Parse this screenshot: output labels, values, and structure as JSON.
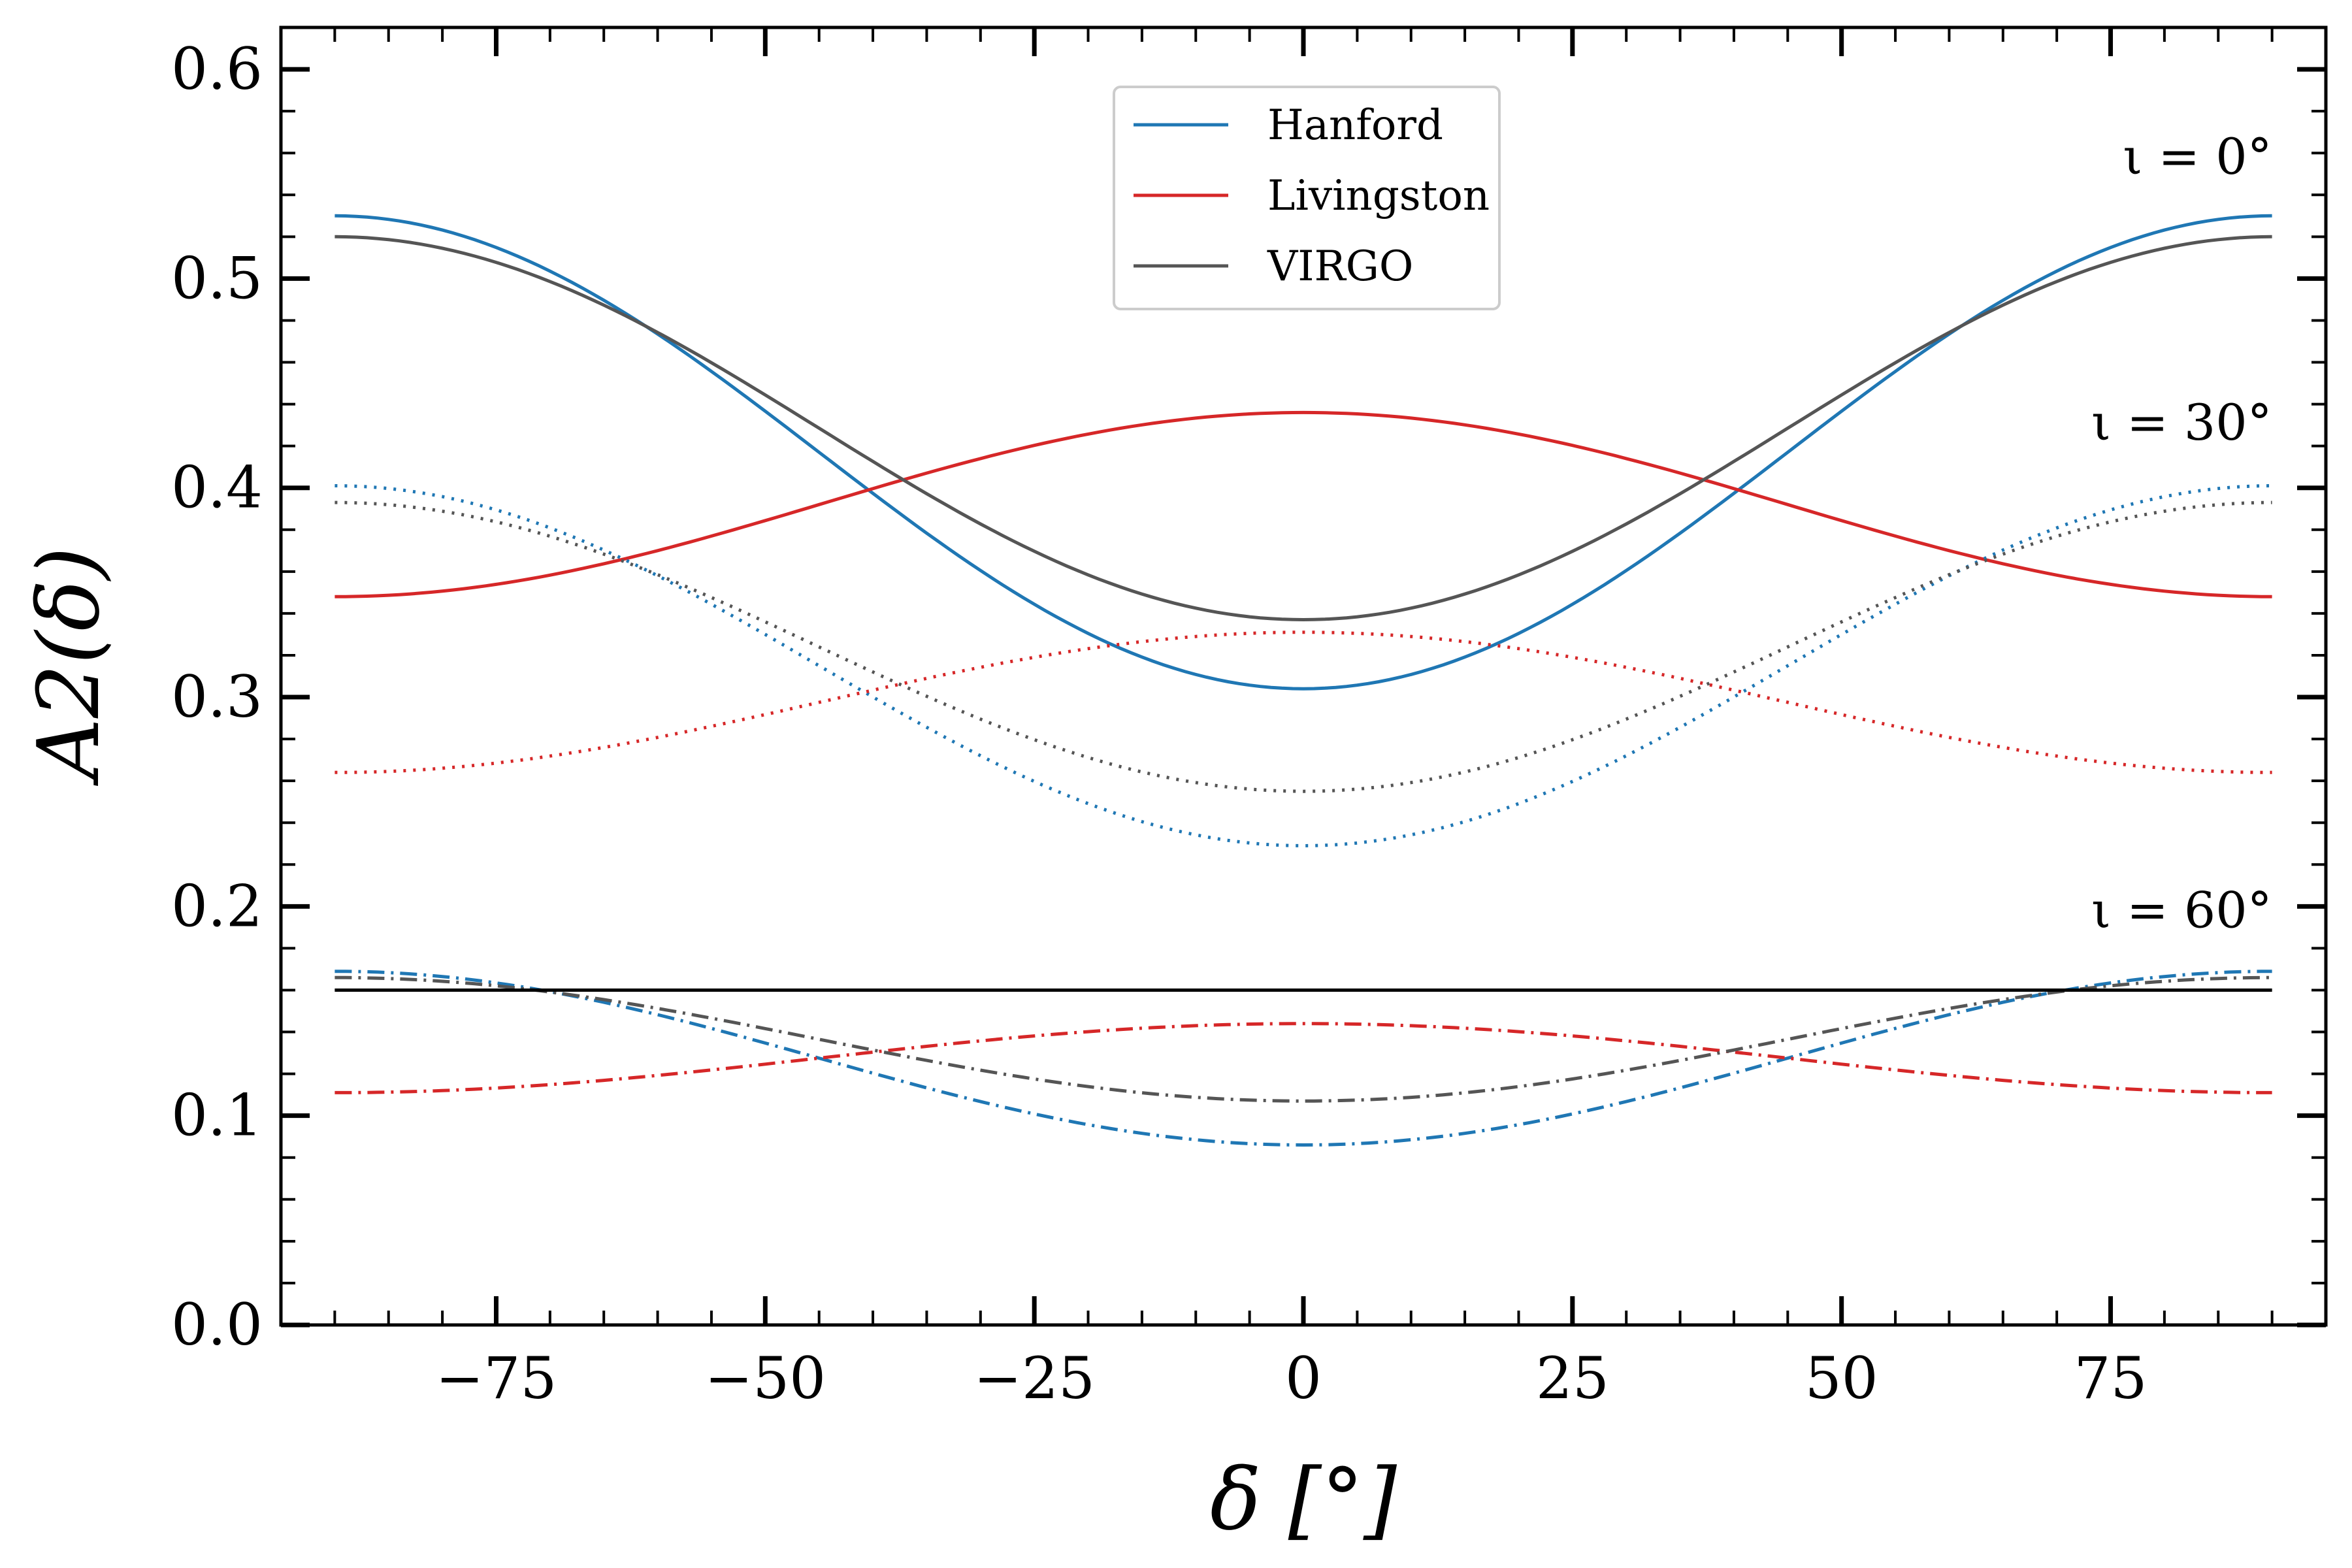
{
  "chart_data": {
    "type": "line",
    "title": "",
    "xlabel": "δ [°]",
    "ylabel": "A2(δ)",
    "xlim": [
      -95,
      95
    ],
    "ylim": [
      0.0,
      0.62
    ],
    "x_ticks": [
      -75,
      -50,
      -25,
      0,
      25,
      50,
      75
    ],
    "x_tick_labels": [
      "−75",
      "−50",
      "−25",
      "0",
      "25",
      "50",
      "75"
    ],
    "y_ticks": [
      0.0,
      0.1,
      0.2,
      0.3,
      0.4,
      0.5,
      0.6
    ],
    "y_tick_labels": [
      "0.0",
      "0.1",
      "0.2",
      "0.3",
      "0.4",
      "0.5",
      "0.6"
    ],
    "x_domain": [
      -90,
      90
    ],
    "legend": {
      "placement": "top-center",
      "entries": [
        {
          "label": "Hanford",
          "color": "#1f77b4"
        },
        {
          "label": "Livingston",
          "color": "#d62728"
        },
        {
          "label": "VIRGO",
          "color": "#555555"
        }
      ]
    },
    "annotations": [
      {
        "text": "ι = 0°",
        "x": 90,
        "y": 0.55
      },
      {
        "text": "ι = 30°",
        "x": 90,
        "y": 0.423
      },
      {
        "text": "ι = 60°",
        "x": 90,
        "y": 0.19
      }
    ],
    "horizontal_line": {
      "y": 0.16,
      "color": "#000000",
      "label": ""
    },
    "series": [
      {
        "name": "Hanford",
        "inclination": "ι = 0°",
        "style": "solid",
        "color": "#1f77b4",
        "edge_value": 0.53,
        "center_value": 0.304
      },
      {
        "name": "Livingston",
        "inclination": "ι = 0°",
        "style": "solid",
        "color": "#d62728",
        "edge_value": 0.348,
        "center_value": 0.436
      },
      {
        "name": "VIRGO",
        "inclination": "ι = 0°",
        "style": "solid",
        "color": "#555555",
        "edge_value": 0.52,
        "center_value": 0.337
      },
      {
        "name": "Hanford",
        "inclination": "ι = 30°",
        "style": "dotted",
        "color": "#1f77b4",
        "edge_value": 0.401,
        "center_value": 0.229
      },
      {
        "name": "Livingston",
        "inclination": "ι = 30°",
        "style": "dotted",
        "color": "#d62728",
        "edge_value": 0.264,
        "center_value": 0.331
      },
      {
        "name": "VIRGO",
        "inclination": "ι = 30°",
        "style": "dotted",
        "color": "#555555",
        "edge_value": 0.393,
        "center_value": 0.255
      },
      {
        "name": "Hanford",
        "inclination": "ι = 60°",
        "style": "dashdot",
        "color": "#1f77b4",
        "edge_value": 0.169,
        "center_value": 0.086
      },
      {
        "name": "Livingston",
        "inclination": "ι = 60°",
        "style": "dashdot",
        "color": "#d62728",
        "edge_value": 0.111,
        "center_value": 0.144
      },
      {
        "name": "VIRGO",
        "inclination": "ι = 60°",
        "style": "dashdot",
        "color": "#555555",
        "edge_value": 0.166,
        "center_value": 0.107
      }
    ]
  }
}
